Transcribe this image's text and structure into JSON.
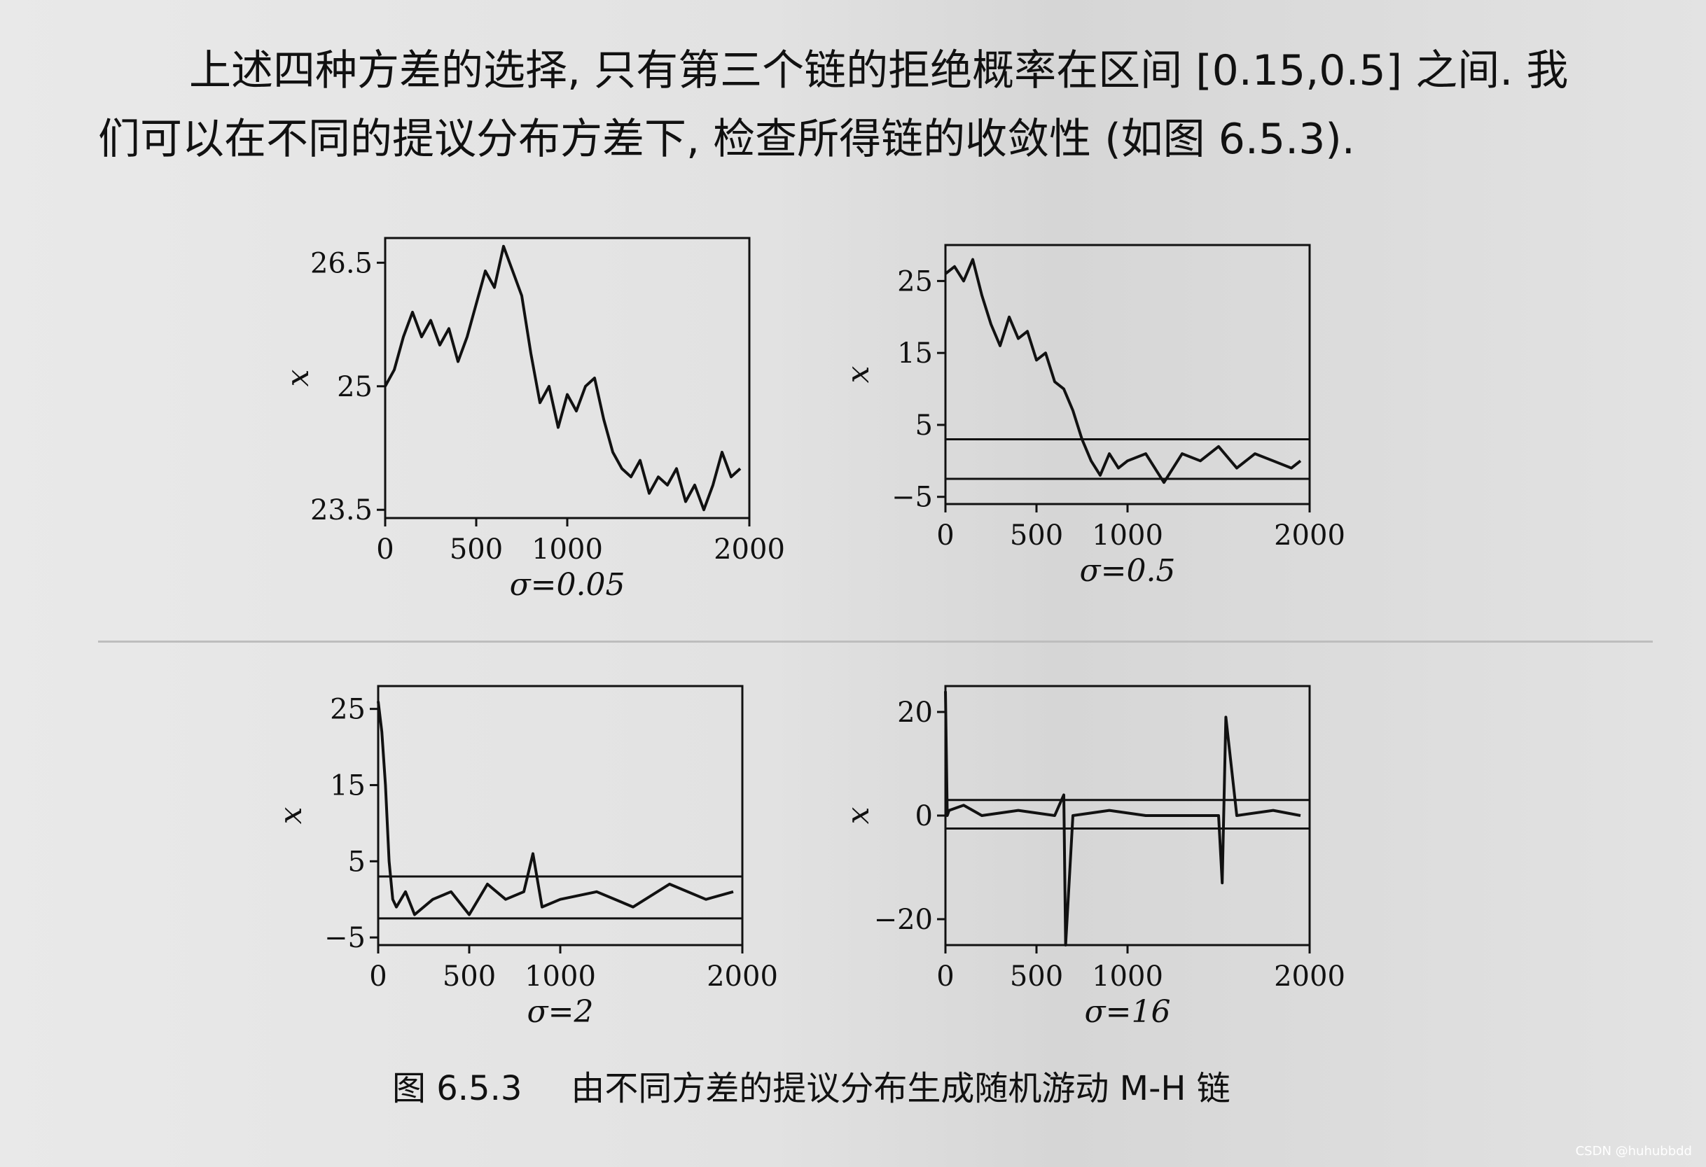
{
  "paragraph": {
    "line1": "上述四种方差的选择, 只有第三个链的拒绝概率在区间 [0.15,0.5] 之间. 我",
    "line2": "们可以在不同的提议分布方差下, 检查所得链的收敛性 (如图 6.5.3)."
  },
  "caption": {
    "number": "图 6.5.3",
    "text": "由不同方差的提议分布生成随机游动 M-H 链"
  },
  "watermark": "CSDN @huhubbdd",
  "chart_data": [
    {
      "type": "line",
      "sigma_label": "σ=0.05",
      "ylabel": "x",
      "xticks": [
        0,
        500,
        1000,
        2000
      ],
      "yticks": [
        23.5,
        25.0,
        26.5
      ],
      "xlim": [
        0,
        2000
      ],
      "ylim": [
        23.4,
        26.8
      ],
      "hlines": [],
      "x": [
        0,
        50,
        100,
        150,
        200,
        250,
        300,
        350,
        400,
        450,
        500,
        550,
        600,
        650,
        700,
        750,
        800,
        850,
        900,
        950,
        1000,
        1050,
        1100,
        1150,
        1200,
        1250,
        1300,
        1350,
        1400,
        1450,
        1500,
        1550,
        1600,
        1650,
        1700,
        1750,
        1800,
        1850,
        1900,
        1950
      ],
      "values": [
        25.0,
        25.2,
        25.6,
        25.9,
        25.6,
        25.8,
        25.5,
        25.7,
        25.3,
        25.6,
        26.0,
        26.4,
        26.2,
        26.7,
        26.4,
        26.1,
        25.4,
        24.8,
        25.0,
        24.5,
        24.9,
        24.7,
        25.0,
        25.1,
        24.6,
        24.2,
        24.0,
        23.9,
        24.1,
        23.7,
        23.9,
        23.8,
        24.0,
        23.6,
        23.8,
        23.5,
        23.8,
        24.2,
        23.9,
        24.0
      ]
    },
    {
      "type": "line",
      "sigma_label": "σ=0.5",
      "ylabel": "x",
      "xticks": [
        0,
        500,
        1000,
        2000
      ],
      "yticks": [
        -5,
        5,
        15,
        25
      ],
      "xlim": [
        0,
        2000
      ],
      "ylim": [
        -6,
        30
      ],
      "hlines": [
        3.0,
        -2.5
      ],
      "x": [
        0,
        50,
        100,
        150,
        200,
        250,
        300,
        350,
        400,
        450,
        500,
        550,
        600,
        650,
        700,
        750,
        800,
        850,
        900,
        950,
        1000,
        1100,
        1200,
        1300,
        1400,
        1500,
        1600,
        1700,
        1800,
        1900,
        1950
      ],
      "values": [
        26,
        27,
        25,
        28,
        23,
        19,
        16,
        20,
        17,
        18,
        14,
        15,
        11,
        10,
        7,
        3,
        0,
        -2,
        1,
        -1,
        0,
        1,
        -3,
        1,
        0,
        2,
        -1,
        1,
        0,
        -1,
        0
      ]
    },
    {
      "type": "line",
      "sigma_label": "σ=2",
      "ylabel": "x",
      "xticks": [
        0,
        500,
        1000,
        2000
      ],
      "yticks": [
        -5,
        5,
        15,
        25
      ],
      "xlim": [
        0,
        2000
      ],
      "ylim": [
        -6,
        28
      ],
      "hlines": [
        3.0,
        -2.5
      ],
      "x": [
        0,
        20,
        40,
        60,
        80,
        100,
        150,
        200,
        300,
        400,
        500,
        600,
        700,
        800,
        850,
        900,
        1000,
        1200,
        1400,
        1600,
        1800,
        1950
      ],
      "values": [
        26,
        22,
        15,
        5,
        0,
        -1,
        1,
        -2,
        0,
        1,
        -2,
        2,
        0,
        1,
        6,
        -1,
        0,
        1,
        -1,
        2,
        0,
        1
      ]
    },
    {
      "type": "line",
      "sigma_label": "σ=16",
      "ylabel": "x",
      "xticks": [
        0,
        500,
        1000,
        2000
      ],
      "yticks": [
        -20,
        0,
        20
      ],
      "xlim": [
        0,
        2000
      ],
      "ylim": [
        -25,
        25
      ],
      "hlines": [
        3.0,
        -2.5
      ],
      "x": [
        0,
        10,
        20,
        100,
        200,
        400,
        600,
        650,
        660,
        700,
        900,
        1100,
        1500,
        1520,
        1540,
        1600,
        1800,
        1950
      ],
      "values": [
        24,
        0,
        1,
        2,
        0,
        1,
        0,
        4,
        -25,
        0,
        1,
        0,
        0,
        -13,
        19,
        0,
        1,
        0
      ]
    }
  ]
}
